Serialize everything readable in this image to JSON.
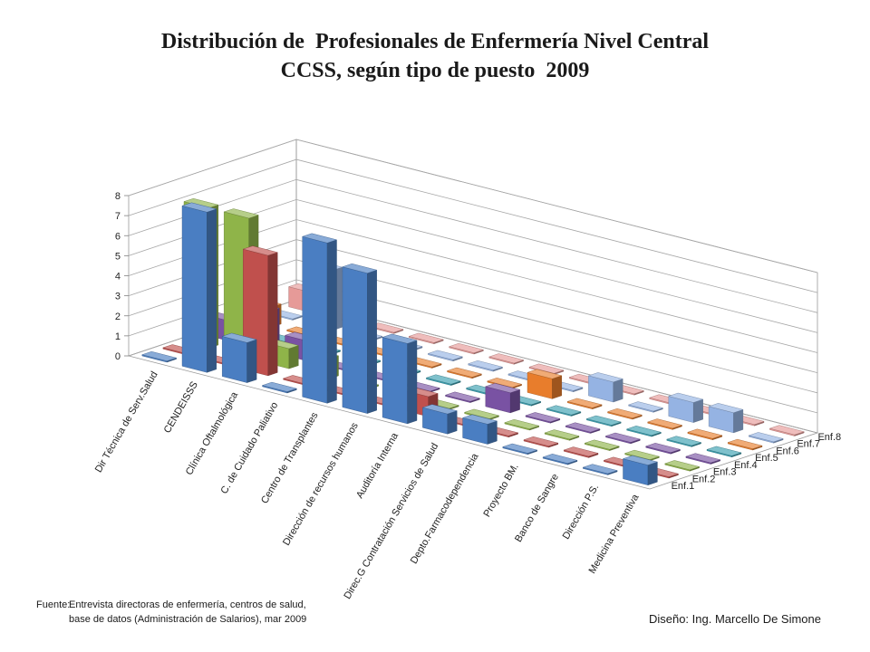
{
  "title_line1": "Distribución de  Profesionales de Enfermería Nivel Central",
  "title_line2": "CCSS, según tipo de puesto  2009",
  "source_label": "Fuente:",
  "source_line1": "Entrevista directoras de enfermería, centros de salud,",
  "source_line2": "base de datos (Administración de Salarios),  mar 2009",
  "design_credit": "Diseño: Ing. Marcello De Simone",
  "chart_data": {
    "type": "bar",
    "style": "3d-column",
    "categories": [
      "Dir Técnica de Serv.Salud",
      "CENDEISSS",
      "Clínica Oftalmológica",
      "C. de Cuidado Paliativo",
      "Centro de Transplantes",
      "Dirección de recursos humanos",
      "Auditoría Interna",
      "Direc.G Contratación Servicios de Salud",
      "Depto.Farmacodependencia",
      "Proyecto BM.",
      "Banco de Sangre",
      "Dirección P.S.",
      "Medicina Preventiva"
    ],
    "series": [
      {
        "name": "Enf.1",
        "color": "#4a7ec2",
        "values": [
          0,
          8,
          2,
          0,
          8,
          7,
          4,
          1,
          1,
          0,
          0,
          0,
          1
        ]
      },
      {
        "name": "Enf.2",
        "color": "#c0504d",
        "values": [
          0,
          0,
          6,
          0,
          0,
          0,
          1,
          0,
          0,
          0,
          0,
          0,
          0
        ]
      },
      {
        "name": "Enf.3",
        "color": "#8fb449",
        "values": [
          7,
          7,
          1,
          1,
          0,
          0,
          0,
          0,
          0,
          0,
          0,
          0,
          0
        ]
      },
      {
        "name": "Enf.4",
        "color": "#7952a3",
        "values": [
          1,
          2,
          1,
          0,
          0,
          0,
          0,
          1,
          0,
          0,
          0,
          0,
          0
        ]
      },
      {
        "name": "Enf.5",
        "color": "#3a9fb0",
        "values": [
          0,
          0,
          0,
          0,
          0,
          0,
          0,
          0,
          0,
          0,
          0,
          0,
          0
        ]
      },
      {
        "name": "Enf.6",
        "color": "#e87d2c",
        "values": [
          1,
          0,
          0,
          0,
          0,
          0,
          0,
          1,
          0,
          0,
          0,
          0,
          0
        ]
      },
      {
        "name": "Enf.7",
        "color": "#95b3e3",
        "values": [
          0,
          3,
          0,
          0,
          0,
          0,
          0,
          0,
          1,
          0,
          1,
          1,
          0
        ]
      },
      {
        "name": "Enf.8",
        "color": "#e69a98",
        "values": [
          1,
          0,
          0,
          0,
          0,
          0,
          0,
          0,
          0,
          0,
          0,
          0,
          0
        ]
      }
    ],
    "ylim": [
      0,
      8
    ],
    "yticks": [
      0,
      1,
      2,
      3,
      4,
      5,
      6,
      7,
      8
    ],
    "grid": true,
    "title": "Distribución de  Profesionales de Enfermería Nivel Central CCSS, según tipo de puesto  2009",
    "xlabel": "",
    "ylabel": ""
  }
}
